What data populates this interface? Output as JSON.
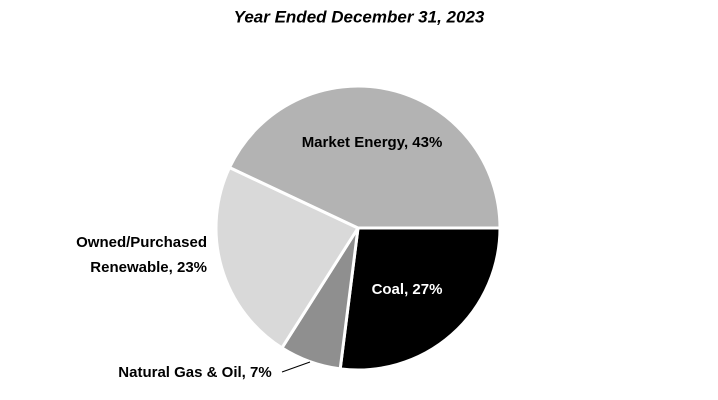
{
  "chart_data": {
    "type": "pie",
    "title": "Year Ended December 31, 2023",
    "values": [
      27,
      7,
      23,
      43
    ],
    "value_labels": [
      "Coal, 27%",
      "Natural Gas & Oil, 7%",
      "Owned/Purchased Renewable, 23%",
      "Market Energy, 43%"
    ],
    "colors": [
      "#000000",
      "#8f8f8f",
      "#d9d9d9",
      "#b3b3b3"
    ]
  }
}
